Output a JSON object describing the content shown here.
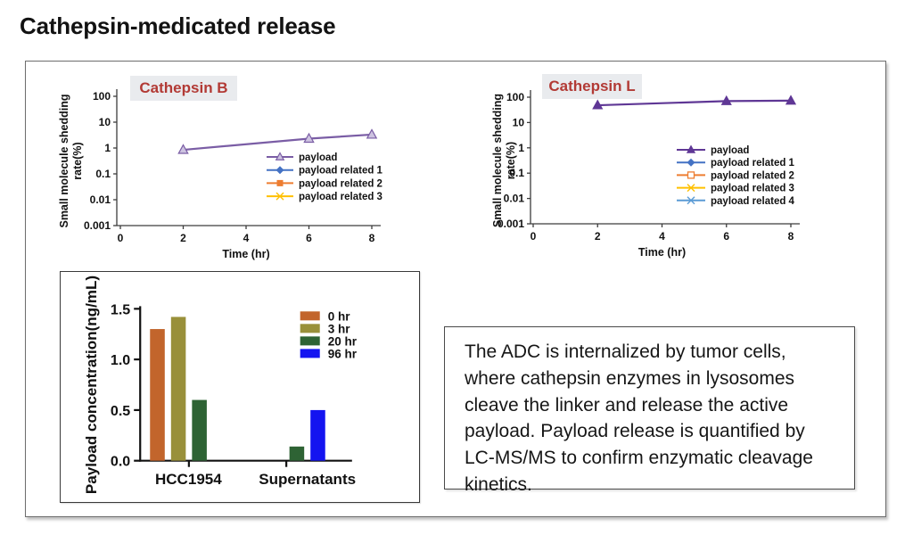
{
  "page": {
    "title": "Cathepsin-medicated release"
  },
  "styles": {
    "panel_label_color": "#b23a35",
    "panel_label_bg": "#e9ebee",
    "axis_color": "#3c3c3c"
  },
  "chart_data": [
    {
      "type": "line",
      "title": "Cathepsin B",
      "y_scale": "log",
      "xlabel": "Time (hr)",
      "ylabel": [
        "Small molecule shedding",
        "rate(%)"
      ],
      "x_ticks": [
        "0",
        "2",
        "4",
        "6",
        "8"
      ],
      "y_ticks": [
        "100",
        "10",
        "1",
        "0.1",
        "0.01",
        "0.001"
      ],
      "xlim": [
        0,
        8
      ],
      "ylim_log": [
        0.001,
        100
      ],
      "x": [
        2,
        6,
        8
      ],
      "series": [
        {
          "name": "payload",
          "values": [
            0.85,
            2.3,
            3.3
          ],
          "color": "#7a5da5",
          "marker": "triangle-open"
        }
      ],
      "legend": [
        {
          "label": "payload",
          "color": "#7a5da5",
          "marker": "triangle-open"
        },
        {
          "label": "payload related 1",
          "color": "#4472c4",
          "marker": "diamond"
        },
        {
          "label": "payload related 2",
          "color": "#ed7d31",
          "marker": "square"
        },
        {
          "label": "payload related 3",
          "color": "#ffc000",
          "marker": "x"
        }
      ],
      "legend_position": "inside-right"
    },
    {
      "type": "line",
      "title": "Cathepsin L",
      "y_scale": "log",
      "xlabel": "Time (hr)",
      "ylabel": [
        "Small molecule shedding",
        "rate(%)"
      ],
      "x_ticks": [
        "0",
        "2",
        "4",
        "6",
        "8"
      ],
      "y_ticks": [
        "100",
        "10",
        "1",
        "0.1",
        "0.01",
        "0.001"
      ],
      "xlim": [
        0,
        8
      ],
      "ylim_log": [
        0.001,
        100
      ],
      "x": [
        2,
        6,
        8
      ],
      "series": [
        {
          "name": "payload",
          "values": [
            48,
            70,
            73
          ],
          "color": "#5f3795",
          "marker": "triangle"
        }
      ],
      "legend": [
        {
          "label": "payload",
          "color": "#5f3795",
          "marker": "triangle"
        },
        {
          "label": "payload related 1",
          "color": "#4472c4",
          "marker": "diamond"
        },
        {
          "label": "payload related 2",
          "color": "#ed7d31",
          "marker": "square-open"
        },
        {
          "label": "payload related 3",
          "color": "#ffc000",
          "marker": "x"
        },
        {
          "label": "payload related 4",
          "color": "#5b9bd5",
          "marker": "asterisk"
        }
      ],
      "legend_position": "inside-right"
    },
    {
      "type": "bar",
      "categories": [
        "HCC1954",
        "Supernatants"
      ],
      "series": [
        {
          "name": "0 hr",
          "color": "#c2652c",
          "values": [
            1.3,
            0
          ]
        },
        {
          "name": "3 hr",
          "color": "#99903a",
          "values": [
            1.42,
            0
          ]
        },
        {
          "name": "20 hr",
          "color": "#2e6334",
          "values": [
            0.6,
            0.14
          ]
        },
        {
          "name": "96 hr",
          "color": "#1414f0",
          "values": [
            0,
            0.5
          ]
        }
      ],
      "ylabel": "Payload concentration(ng/mL)",
      "y_ticks": [
        "0.0",
        "0.5",
        "1.0",
        "1.5"
      ],
      "ylim": [
        0,
        1.5
      ],
      "legend_position": "inside-right"
    }
  ],
  "description_box": {
    "text": "The ADC is internalized by tumor cells, where cathepsin enzymes in lysosomes cleave the linker and release the active payload. Payload release is quantified by LC-MS/MS to confirm enzymatic cleavage kinetics."
  }
}
